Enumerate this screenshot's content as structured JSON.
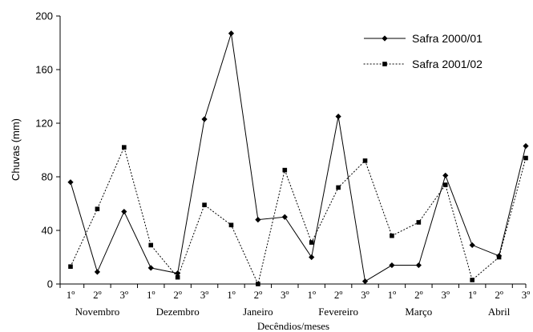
{
  "chart_data": {
    "type": "line",
    "xlabel": "Decêndios/meses",
    "ylabel": "Chuvas (mm)",
    "ylim": [
      0,
      200
    ],
    "yticks": [
      "0",
      "40",
      "80",
      "120",
      "160",
      "200"
    ],
    "categories": [
      "1º",
      "2º",
      "3º",
      "1º",
      "2º",
      "3º",
      "1º",
      "2º",
      "3º",
      "1º",
      "2º",
      "3º",
      "1º",
      "2º",
      "3º",
      "1º",
      "2º",
      "3º"
    ],
    "months": [
      "Novembro",
      "Dezembro",
      "Janeiro",
      "Fevereiro",
      "Março",
      "Abril"
    ],
    "legend_position": "top-right",
    "series": [
      {
        "name": "Safra 2000/01",
        "style": "solid",
        "marker": "diamond",
        "values": [
          76,
          9,
          54,
          12,
          8,
          123,
          187,
          48,
          50,
          20,
          125,
          2,
          14,
          14,
          81,
          29,
          21,
          103
        ]
      },
      {
        "name": "Safra 2001/02",
        "style": "dotted",
        "marker": "square",
        "values": [
          13,
          56,
          102,
          29,
          5,
          59,
          44,
          0,
          85,
          31,
          72,
          92,
          36,
          46,
          74,
          3,
          20,
          94
        ]
      }
    ]
  }
}
